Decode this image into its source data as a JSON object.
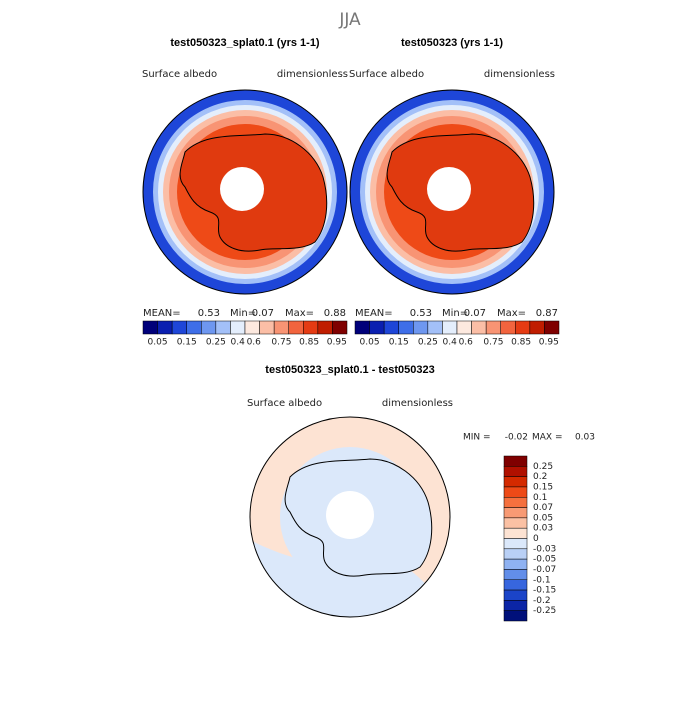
{
  "title": "JJA",
  "panels": [
    {
      "title": "test050323_splat0.1 (yrs 1-1)",
      "field": "Surface albedo",
      "units": "dimensionless",
      "mean_label": "MEAN=",
      "mean": 0.53,
      "min_label": "Min=",
      "min": 0.07,
      "max_label": "Max=",
      "max": 0.88
    },
    {
      "title": "test050323 (yrs 1-1)",
      "field": "Surface albedo",
      "units": "dimensionless",
      "mean_label": "MEAN=",
      "mean": 0.53,
      "min_label": "Min=",
      "min": 0.07,
      "max_label": "Max=",
      "max": 0.87
    }
  ],
  "colorbar": {
    "colors": [
      "#00007a",
      "#0a1fb0",
      "#1e46d8",
      "#3e6ee8",
      "#6e97f0",
      "#a3c0f8",
      "#e4eefc",
      "#fde9df",
      "#fbbea6",
      "#f89474",
      "#f2643e",
      "#e53b13",
      "#c01d00",
      "#7f0000"
    ],
    "labels": [
      0.05,
      0.15,
      0.25,
      0.4,
      0.6,
      0.75,
      0.85,
      0.95
    ]
  },
  "difference": {
    "title": "test050323_splat0.1 - test050323",
    "field": "Surface albedo",
    "units": "dimensionless",
    "min_label": "MIN =",
    "min": -0.02,
    "max_label": "MAX =",
    "max": 0.03,
    "colors": [
      "#7f0000",
      "#b01000",
      "#d42a00",
      "#ee4a17",
      "#f5703e",
      "#f89a74",
      "#fbc1a4",
      "#fde3d3",
      "#dbe8fa",
      "#b9d0f6",
      "#8fb2f2",
      "#628ee9",
      "#3766de",
      "#1b44c8",
      "#0b25a6",
      "#00107a"
    ],
    "labels": [
      0.25,
      0.2,
      0.15,
      0.1,
      0.07,
      0.05,
      0.03,
      0,
      -0.03,
      -0.05,
      -0.07,
      -0.1,
      -0.15,
      -0.2,
      -0.25
    ]
  }
}
